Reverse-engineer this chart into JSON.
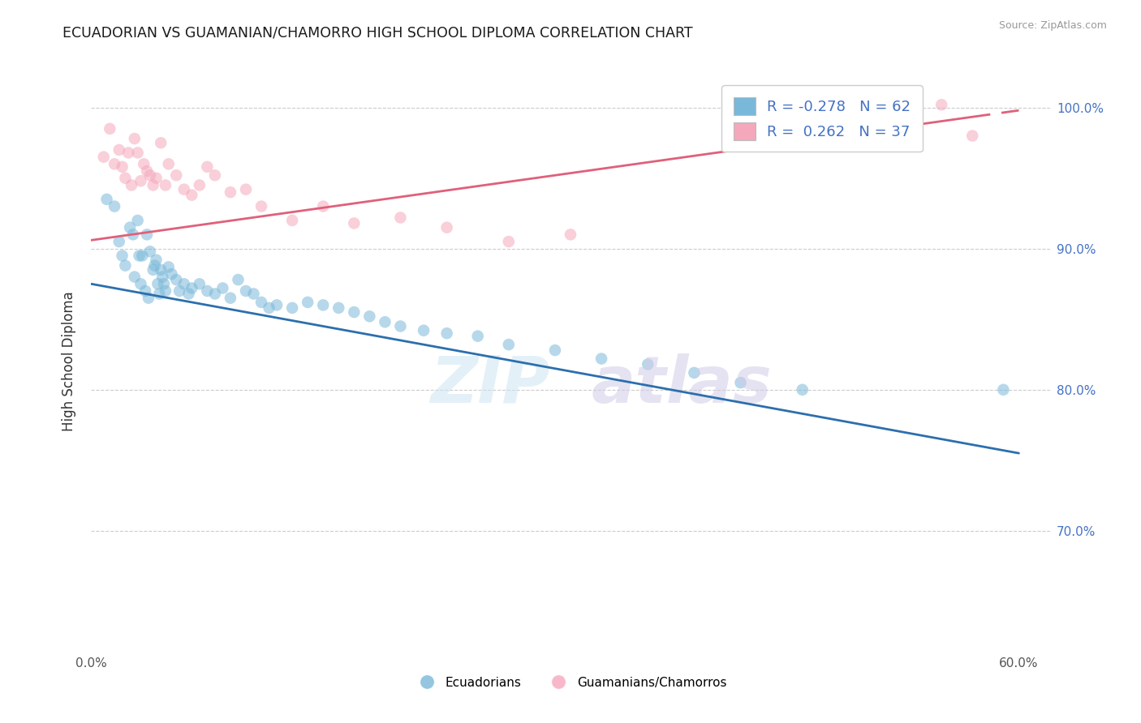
{
  "title": "ECUADORIAN VS GUAMANIAN/CHAMORRO HIGH SCHOOL DIPLOMA CORRELATION CHART",
  "source": "Source: ZipAtlas.com",
  "ylabel": "High School Diploma",
  "xlim_min": 0.0,
  "xlim_max": 0.62,
  "ylim_min": 0.615,
  "ylim_max": 1.025,
  "ytick_positions": [
    0.7,
    0.8,
    0.9,
    1.0
  ],
  "ytick_labels": [
    "70.0%",
    "80.0%",
    "90.0%",
    "100.0%"
  ],
  "xtick_positions": [
    0.0,
    0.1,
    0.2,
    0.3,
    0.4,
    0.5,
    0.6
  ],
  "xtick_labels": [
    "0.0%",
    "",
    "",
    "",
    "",
    "",
    "60.0%"
  ],
  "blue_color": "#7ab8d9",
  "blue_line_color": "#2c6fad",
  "pink_color": "#f5a8bc",
  "pink_line_color": "#e0607a",
  "blue_r": -0.278,
  "blue_n": 62,
  "pink_r": 0.262,
  "pink_n": 37,
  "blue_line_x0": 0.0,
  "blue_line_x1": 0.6,
  "blue_line_y0": 0.875,
  "blue_line_y1": 0.755,
  "pink_line_x0": 0.0,
  "pink_line_x1": 0.6,
  "pink_line_y0": 0.906,
  "pink_line_y1": 0.998,
  "pink_line_solid_x1": 0.57,
  "blue_scatter_x": [
    0.01,
    0.015,
    0.018,
    0.02,
    0.022,
    0.025,
    0.027,
    0.028,
    0.03,
    0.031,
    0.032,
    0.033,
    0.035,
    0.036,
    0.037,
    0.038,
    0.04,
    0.041,
    0.042,
    0.043,
    0.044,
    0.045,
    0.046,
    0.047,
    0.048,
    0.05,
    0.052,
    0.055,
    0.057,
    0.06,
    0.063,
    0.065,
    0.07,
    0.075,
    0.08,
    0.085,
    0.09,
    0.095,
    0.1,
    0.105,
    0.11,
    0.115,
    0.12,
    0.13,
    0.14,
    0.15,
    0.16,
    0.17,
    0.18,
    0.19,
    0.2,
    0.215,
    0.23,
    0.25,
    0.27,
    0.3,
    0.33,
    0.36,
    0.39,
    0.42,
    0.46,
    0.59
  ],
  "blue_scatter_y": [
    0.935,
    0.93,
    0.905,
    0.895,
    0.888,
    0.915,
    0.91,
    0.88,
    0.92,
    0.895,
    0.875,
    0.895,
    0.87,
    0.91,
    0.865,
    0.898,
    0.885,
    0.888,
    0.892,
    0.875,
    0.868,
    0.885,
    0.88,
    0.875,
    0.87,
    0.887,
    0.882,
    0.878,
    0.87,
    0.875,
    0.868,
    0.872,
    0.875,
    0.87,
    0.868,
    0.872,
    0.865,
    0.878,
    0.87,
    0.868,
    0.862,
    0.858,
    0.86,
    0.858,
    0.862,
    0.86,
    0.858,
    0.855,
    0.852,
    0.848,
    0.845,
    0.842,
    0.84,
    0.838,
    0.832,
    0.828,
    0.822,
    0.818,
    0.812,
    0.805,
    0.8,
    0.8
  ],
  "pink_scatter_x": [
    0.008,
    0.012,
    0.015,
    0.018,
    0.02,
    0.022,
    0.024,
    0.026,
    0.028,
    0.03,
    0.032,
    0.034,
    0.036,
    0.038,
    0.04,
    0.042,
    0.045,
    0.048,
    0.05,
    0.055,
    0.06,
    0.065,
    0.07,
    0.075,
    0.08,
    0.09,
    0.1,
    0.11,
    0.13,
    0.15,
    0.17,
    0.2,
    0.23,
    0.27,
    0.31,
    0.55,
    0.57
  ],
  "pink_scatter_y": [
    0.965,
    0.985,
    0.96,
    0.97,
    0.958,
    0.95,
    0.968,
    0.945,
    0.978,
    0.968,
    0.948,
    0.96,
    0.955,
    0.952,
    0.945,
    0.95,
    0.975,
    0.945,
    0.96,
    0.952,
    0.942,
    0.938,
    0.945,
    0.958,
    0.952,
    0.94,
    0.942,
    0.93,
    0.92,
    0.93,
    0.918,
    0.922,
    0.915,
    0.905,
    0.91,
    1.002,
    0.98
  ]
}
